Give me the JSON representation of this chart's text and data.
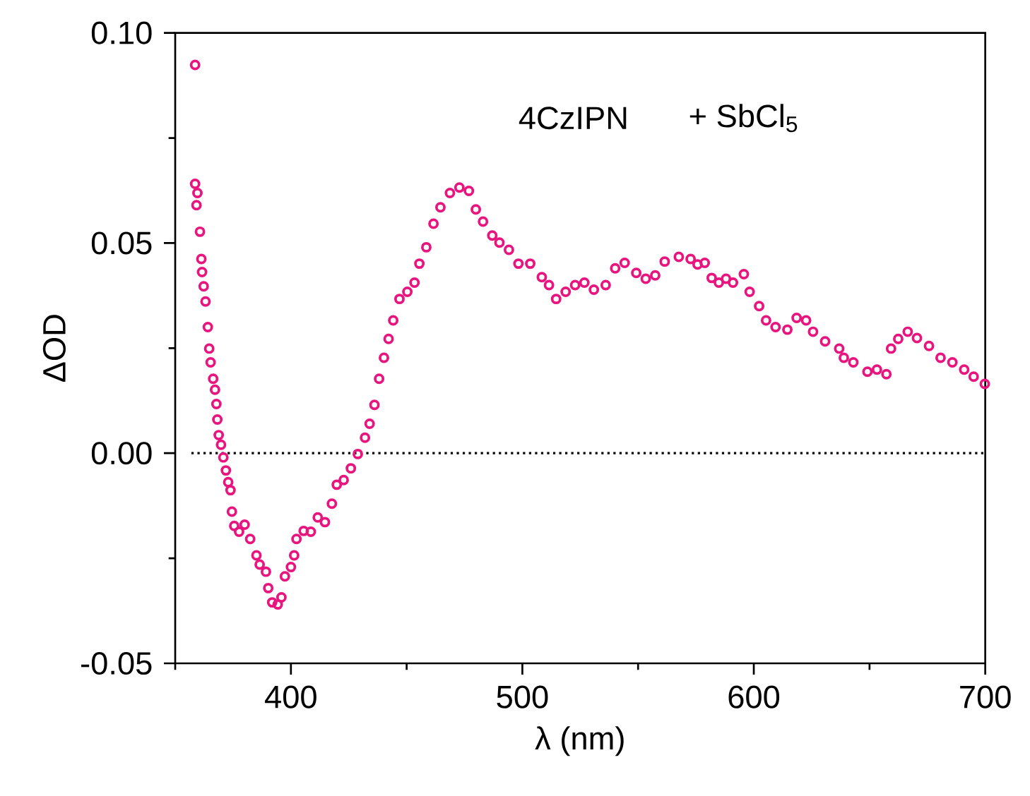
{
  "chart_data": {
    "type": "scatter",
    "xlabel": "λ (nm)",
    "ylabel": "ΔOD",
    "annotations": [
      "4CzIPN",
      "+ SbCl$_{5}$"
    ],
    "xlim": [
      350,
      700
    ],
    "ylim": [
      -0.05,
      0.1
    ],
    "xticks": [
      {
        "value": 350,
        "label": null
      },
      400,
      {
        "value": 450,
        "label": null
      },
      500,
      {
        "value": 550,
        "label": null
      },
      600,
      {
        "value": 650,
        "label": null
      },
      700
    ],
    "yticks": [
      {
        "value": -0.05,
        "label": "-0.05"
      },
      {
        "value": -0.025,
        "label": null
      },
      {
        "value": 0,
        "label": "0.00"
      },
      {
        "value": 0.025,
        "label": null
      },
      {
        "value": 0.05,
        "label": "0.05"
      },
      {
        "value": 0.075,
        "label": null
      },
      {
        "value": 0.1,
        "label": "0.10"
      }
    ],
    "marker": "circle",
    "grid": false,
    "ref_lines": [
      {
        "axis": "y",
        "value": 0,
        "line_style": "dotted",
        "color": "#000000"
      }
    ],
    "series": [
      {
        "color": "#e8157f",
        "x": [
          358.6,
          358.6,
          359.6,
          359.2,
          360.7,
          361.3,
          361.6,
          362.3,
          363.1,
          364.1,
          364.7,
          365.3,
          366.4,
          367.2,
          367.8,
          368.2,
          368.8,
          369.8,
          370.8,
          371.9,
          372.9,
          373.9,
          374.5,
          375.5,
          377.6,
          380.0,
          382.4,
          385.1,
          386.5,
          389.2,
          390.2,
          391.9,
          394.3,
          395.9,
          397.4,
          400.0,
          401.4,
          402.4,
          405.5,
          408.6,
          411.6,
          414.7,
          417.7,
          419.8,
          422.8,
          425.9,
          428.9,
          432.0,
          434.0,
          436.1,
          438.1,
          440.2,
          442.2,
          444.2,
          446.9,
          450.3,
          453.4,
          455.5,
          458.5,
          461.6,
          464.6,
          468.7,
          472.8,
          476.9,
          479.9,
          483.0,
          487.0,
          490.1,
          494.2,
          498.3,
          503.4,
          508.4,
          511.5,
          514.6,
          518.7,
          522.8,
          526.8,
          530.9,
          536.0,
          540.1,
          544.2,
          549.2,
          553.3,
          557.4,
          561.5,
          567.6,
          572.7,
          575.7,
          578.8,
          581.8,
          584.9,
          588.0,
          591.0,
          595.7,
          598.2,
          602.3,
          605.3,
          609.4,
          614.5,
          618.5,
          622.6,
          625.6,
          630.8,
          636.9,
          638.9,
          643.0,
          649.1,
          653.2,
          657.3,
          659.3,
          662.4,
          666.5,
          670.5,
          675.7,
          680.7,
          685.8,
          690.9,
          695.0,
          699.8
        ],
        "values": [
          0.0924,
          0.0641,
          0.0619,
          0.059,
          0.0527,
          0.0462,
          0.0431,
          0.0397,
          0.0361,
          0.03,
          0.0249,
          0.0216,
          0.0177,
          0.0151,
          0.0117,
          0.008,
          0.0043,
          0.002,
          -0.001,
          -0.0041,
          -0.0069,
          -0.0088,
          -0.0139,
          -0.0173,
          -0.0187,
          -0.017,
          -0.0204,
          -0.0243,
          -0.0265,
          -0.0282,
          -0.0321,
          -0.0355,
          -0.036,
          -0.0343,
          -0.0293,
          -0.0271,
          -0.0243,
          -0.0204,
          -0.0185,
          -0.0187,
          -0.0153,
          -0.0164,
          -0.012,
          -0.0075,
          -0.0064,
          -0.0036,
          -0.0002,
          0.0037,
          0.007,
          0.0115,
          0.0177,
          0.0227,
          0.0272,
          0.0316,
          0.0367,
          0.0384,
          0.0406,
          0.0451,
          0.049,
          0.0546,
          0.0585,
          0.0619,
          0.0632,
          0.0624,
          0.058,
          0.0551,
          0.0518,
          0.0501,
          0.0484,
          0.0451,
          0.0451,
          0.0419,
          0.04,
          0.0367,
          0.0384,
          0.04,
          0.0406,
          0.0389,
          0.04,
          0.044,
          0.0453,
          0.0429,
          0.0415,
          0.0423,
          0.0456,
          0.0467,
          0.0462,
          0.0449,
          0.0453,
          0.0417,
          0.0406,
          0.0415,
          0.0406,
          0.0426,
          0.0384,
          0.035,
          0.0316,
          0.03,
          0.0294,
          0.0322,
          0.0316,
          0.0289,
          0.0266,
          0.0249,
          0.0227,
          0.0216,
          0.0194,
          0.0199,
          0.0188,
          0.0249,
          0.0272,
          0.0289,
          0.0274,
          0.0255,
          0.0227,
          0.0216,
          0.0199,
          0.0182,
          0.0165
        ]
      }
    ]
  }
}
